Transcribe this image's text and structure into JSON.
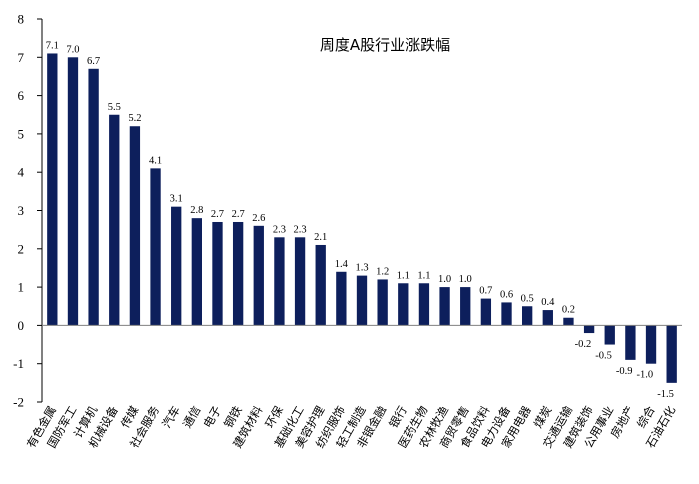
{
  "chart_data": {
    "type": "bar",
    "title": "周度A股行业涨跌幅",
    "xlabel": "",
    "ylabel": "",
    "ylim": [
      -2,
      8
    ],
    "yticks": [
      -2,
      -1,
      0,
      1,
      2,
      3,
      4,
      5,
      6,
      7,
      8
    ],
    "grid": false,
    "bar_color": "#0d1f5c",
    "categories": [
      "有色金属",
      "国防军工",
      "计算机",
      "机械设备",
      "传媒",
      "社会服务",
      "汽车",
      "通信",
      "电子",
      "钢铁",
      "建筑材料",
      "环保",
      "基础化工",
      "美容护理",
      "纺织服饰",
      "轻工制造",
      "非银金融",
      "银行",
      "医药生物",
      "农林牧渔",
      "商贸零售",
      "食品饮料",
      "电力设备",
      "家用电器",
      "煤炭",
      "交通运输",
      "建筑装饰",
      "公用事业",
      "房地产",
      "综合",
      "石油石化"
    ],
    "values": [
      7.1,
      7.0,
      6.7,
      5.5,
      5.2,
      4.1,
      3.1,
      2.8,
      2.7,
      2.7,
      2.6,
      2.3,
      2.3,
      2.1,
      1.4,
      1.3,
      1.2,
      1.1,
      1.1,
      1.0,
      1.0,
      0.7,
      0.6,
      0.5,
      0.4,
      0.2,
      -0.2,
      -0.5,
      -0.9,
      -1.0,
      -1.5
    ]
  }
}
